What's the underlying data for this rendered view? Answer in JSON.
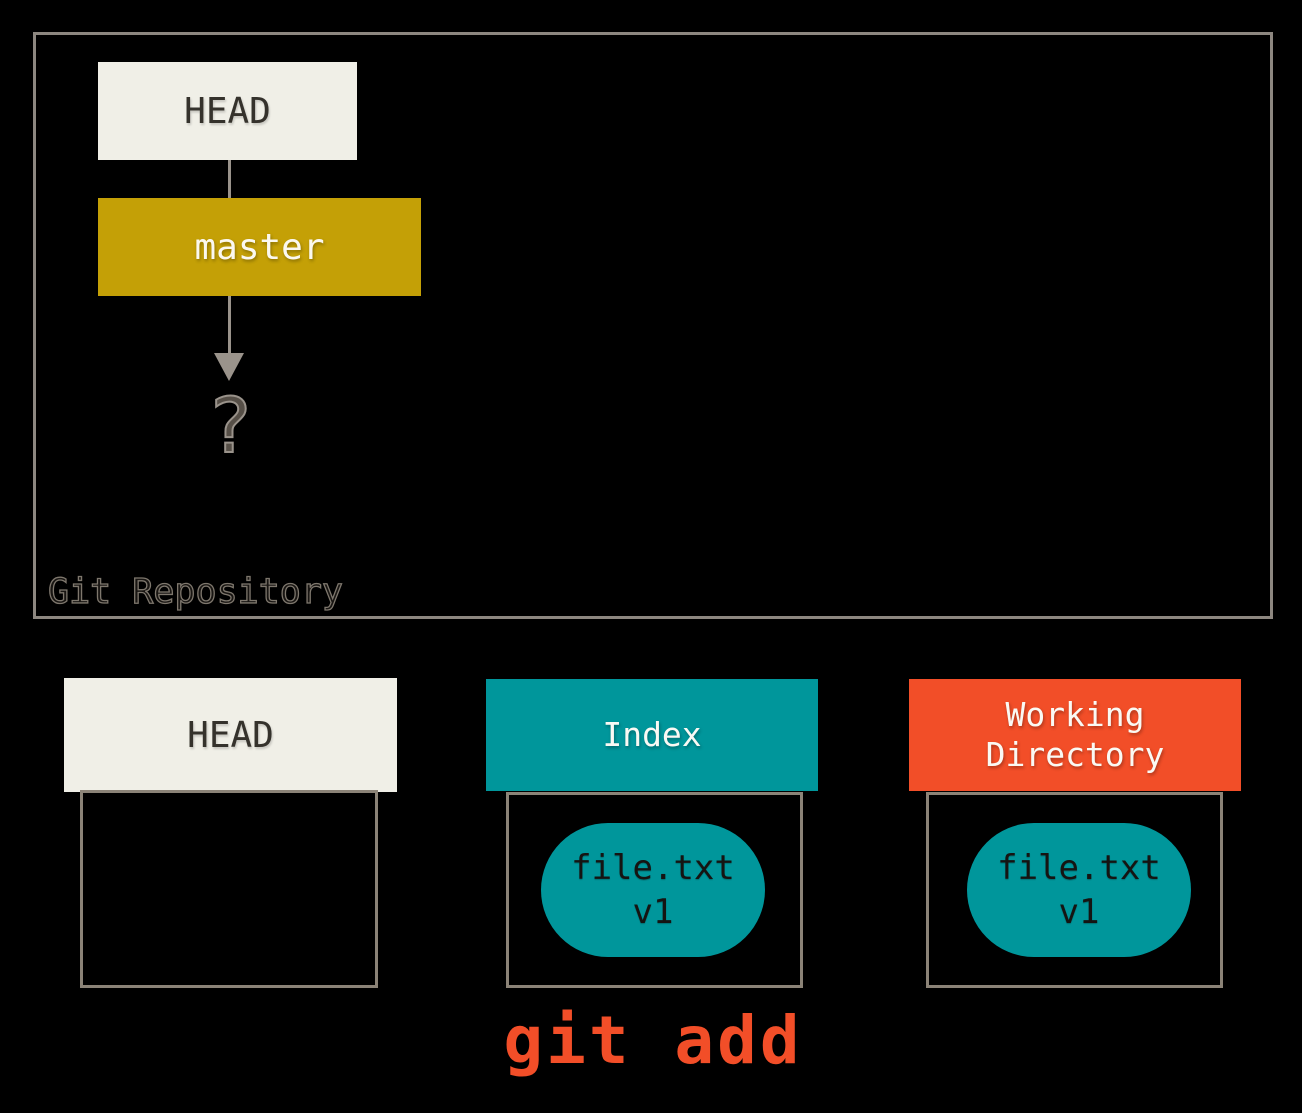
{
  "colors": {
    "background": "#000000",
    "cream": "#F0EFE7",
    "gold": "#C4A006",
    "teal": "#00969B",
    "orange": "#F24E28",
    "border_gray": "#8D8780",
    "bracket_gray": "#8B8377",
    "arrow_gray": "#9A938B",
    "dark_text": "#35322C"
  },
  "repository": {
    "label": "Git Repository",
    "head": "HEAD",
    "branch": "master",
    "unknown": "?"
  },
  "columns": {
    "head": {
      "title": "HEAD"
    },
    "index": {
      "title": "Index",
      "file_name": "file.txt",
      "file_version": "v1"
    },
    "working_directory": {
      "title": "Working Directory",
      "file_name": "file.txt",
      "file_version": "v1"
    }
  },
  "command": "git add"
}
